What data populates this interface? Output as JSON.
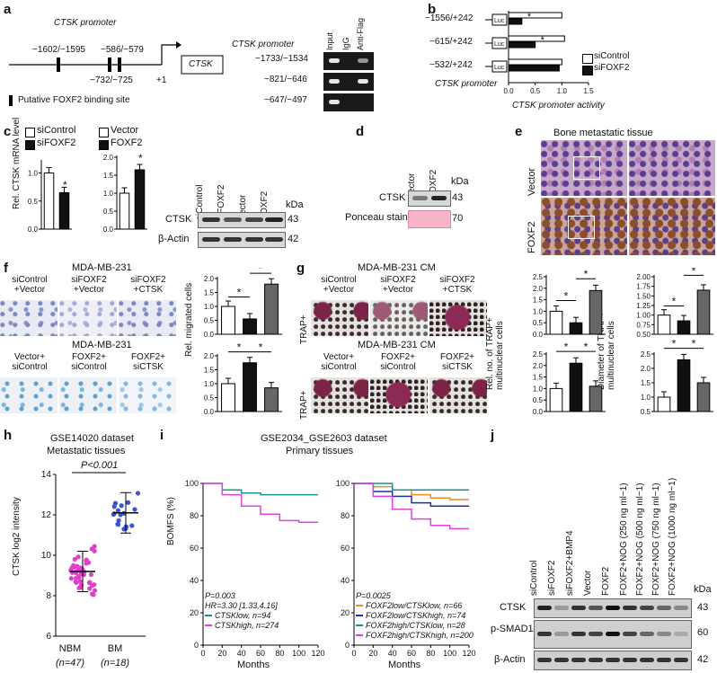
{
  "panels": {
    "a": {
      "label": "a",
      "promoter_title": "CTSK promoter",
      "gene_box": "CTSK",
      "site_labels": [
        "−1602/−1595",
        "−586/−579",
        "−732/−725"
      ],
      "plus_one": "+1",
      "legend": "Putative FOXF2 binding site",
      "gel_title": "CTSK promoter",
      "gel_cols": [
        "Input",
        "IgG",
        "Anti-Flag"
      ],
      "gel_rows": [
        "−1733/−1534",
        "−821/−646",
        "−647/−497"
      ]
    },
    "b": {
      "label": "b",
      "constructs": [
        "−1556/+242",
        "−615/+242",
        "−532/+242"
      ],
      "luc": "Luc",
      "ylabel": "CTSK promoter",
      "xlabel": "CTSK promoter activity",
      "ticks": [
        "0.0",
        "0.5",
        "1.0",
        "1.5"
      ],
      "legend": [
        "siControl",
        "siFOXF2"
      ],
      "stars": [
        "*",
        "*"
      ]
    },
    "c": {
      "label": "c",
      "legend_left": [
        "siControl",
        "siFOXF2"
      ],
      "legend_right": [
        "Vector",
        "FOXF2"
      ],
      "ylabel": "Rel. CTSK mRNA level",
      "ticks_left": [
        "0.0",
        "0.5",
        "1.0"
      ],
      "ticks_right": [
        "0.0",
        "0.5",
        "1.0",
        "1.5",
        "2.0"
      ],
      "blot_cols": [
        "siControl",
        "siFOXF2",
        "Vector",
        "FOXF2"
      ],
      "blot_rows": [
        "CTSK",
        "β-Actin"
      ],
      "kda": "kDa",
      "kda_vals": [
        "43",
        "42"
      ],
      "stars": [
        "*",
        "*"
      ]
    },
    "d": {
      "label": "d",
      "cols": [
        "Vector",
        "FOXF2"
      ],
      "rows": [
        "CTSK",
        "Ponceau stain"
      ],
      "kda": "kDa",
      "kda_vals": [
        "43",
        "70"
      ]
    },
    "e": {
      "label": "e",
      "title": "Bone metastatic tissue",
      "rows": [
        "Vector",
        "FOXF2"
      ]
    },
    "f": {
      "label": "f",
      "title_top": "MDA-MB-231",
      "title_bottom": "MDA-MB-231",
      "top_cols": [
        "siControl +Vector",
        "siFOXF2 +Vector",
        "siFOXF2 +CTSK"
      ],
      "bottom_cols": [
        "Vector+ siControl",
        "FOXF2+ siControl",
        "FOXF2+ siCTSK"
      ],
      "ylabel": "Rel. migrated cells",
      "ticks_top": [
        "0.0",
        "0.5",
        "1.0",
        "1.5",
        "2.0"
      ],
      "ticks_bottom": [
        "0.0",
        "0.5",
        "1.0",
        "1.5",
        "2.0"
      ]
    },
    "g": {
      "label": "g",
      "title_top": "MDA-MB-231 CM",
      "title_bottom": "MDA-MB-231 CM",
      "top_cols": [
        "siControl +Vector",
        "siFOXF2 +Vector",
        "siFOXF2 +CTSK"
      ],
      "bottom_cols": [
        "Vector+ siControl",
        "FOXF2+ siControl",
        "FOXF2+ siCTSK"
      ],
      "row_label": "TRAP+",
      "ylabel_no": "Rel. no. of TRAP+ multinuclear cells",
      "ylabel_dia": "Diameter of TRAP+ multinuclear cells",
      "ticks_no_top": [
        "0.0",
        "0.5",
        "1.0",
        "1.5",
        "2.0",
        "2.5"
      ],
      "ticks_no_bottom": [
        "0.0",
        "0.5",
        "1.0",
        "1.5",
        "2.0",
        "2.5"
      ],
      "ticks_dia_top": [
        "0.50",
        "0.75",
        "1.00",
        "1.25",
        "1.50",
        "1.75",
        "2.00"
      ],
      "ticks_dia_bottom": [
        "0.5",
        "1.0",
        "1.5",
        "2.0",
        "2.5"
      ]
    },
    "h": {
      "label": "h",
      "title": "GSE14020 dataset",
      "subtitle": "Metastatic tissues",
      "pvalue": "P<0.001",
      "ylabel": "CTSK log2 intensity",
      "ticks": [
        "6",
        "8",
        "10",
        "12",
        "14"
      ],
      "groups": [
        "NBM",
        "BM"
      ],
      "group_n": [
        "(n=47)",
        "(n=18)"
      ]
    },
    "i": {
      "label": "i",
      "title": "GSE2034_GSE2603 dataset",
      "subtitle": "Primary tissues",
      "ylabel": "BOMFS (%)",
      "xlabel": "Months",
      "yticks": [
        "0",
        "20",
        "40",
        "60",
        "80",
        "100"
      ],
      "xticks": [
        "0",
        "20",
        "40",
        "60",
        "80",
        "100",
        "120"
      ],
      "left_stats": [
        "P=0.003",
        "HR=3.30 [1.33,4.16]"
      ],
      "left_legend": [
        "CTSKlow, n=94",
        "CTSKhigh, n=274"
      ],
      "right_stats": [
        "P=0.0025"
      ],
      "right_legend": [
        "FOXF2low/CTSKlow, n=66",
        "FOXF2low/CTSKhigh, n=74",
        "FOXF2high/CTSKlow, n=28",
        "FOXF2high/CTSKhigh, n=200"
      ]
    },
    "j": {
      "label": "j",
      "cols": [
        "siControl",
        "siFOXF2",
        "siFOXF2+BMP4",
        "Vector",
        "FOXF2",
        "FOXF2+NOG (250 ng ml−1)",
        "FOXF2+NOG (500 ng ml−1)",
        "FOXF2+NOG (750 ng ml−1)",
        "FOXF2+NOG (1000 ng ml−1)"
      ],
      "rows": [
        "CTSK",
        "p-SMAD1/5",
        "β-Actin"
      ],
      "kda": "kDa",
      "kda_vals": [
        "43",
        "60",
        "42"
      ]
    }
  },
  "chart_data": [
    {
      "id": "b",
      "type": "bar",
      "orientation": "horizontal",
      "categories": [
        "−1556/+242",
        "−615/+242",
        "−532/+242"
      ],
      "series": [
        {
          "name": "siControl",
          "values": [
            1.0,
            1.05,
            1.0
          ]
        },
        {
          "name": "siFOXF2",
          "values": [
            0.25,
            0.5,
            0.95
          ]
        }
      ],
      "xlim": [
        0,
        1.5
      ]
    },
    {
      "id": "c-left",
      "type": "bar",
      "categories": [
        "siControl",
        "siFOXF2"
      ],
      "values": [
        1.0,
        0.65
      ],
      "ylim": [
        0,
        1.2
      ]
    },
    {
      "id": "c-right",
      "type": "bar",
      "categories": [
        "Vector",
        "FOXF2"
      ],
      "values": [
        1.0,
        1.65
      ],
      "ylim": [
        0,
        2.0
      ]
    },
    {
      "id": "f-top",
      "type": "bar",
      "categories": [
        "siControl+Vector",
        "siFOXF2+Vector",
        "siFOXF2+CTSK"
      ],
      "values": [
        1.0,
        0.55,
        1.8
      ],
      "ylim": [
        0,
        2.0
      ]
    },
    {
      "id": "f-bottom",
      "type": "bar",
      "categories": [
        "Vector+siControl",
        "FOXF2+siControl",
        "FOXF2+siCTSK"
      ],
      "values": [
        1.0,
        1.75,
        0.85
      ],
      "ylim": [
        0,
        2.0
      ]
    },
    {
      "id": "g-no-top",
      "type": "bar",
      "categories": [
        "siControl+Vector",
        "siFOXF2+Vector",
        "siFOXF2+CTSK"
      ],
      "values": [
        1.0,
        0.5,
        1.9
      ],
      "ylim": [
        0,
        2.5
      ]
    },
    {
      "id": "g-no-bottom",
      "type": "bar",
      "categories": [
        "Vector+siControl",
        "FOXF2+siControl",
        "FOXF2+siCTSK"
      ],
      "values": [
        1.0,
        2.1,
        1.1
      ],
      "ylim": [
        0,
        2.5
      ]
    },
    {
      "id": "g-dia-top",
      "type": "bar",
      "categories": [
        "siControl+Vector",
        "siFOXF2+Vector",
        "siFOXF2+CTSK"
      ],
      "values": [
        1.0,
        0.85,
        1.65
      ],
      "ylim": [
        0.5,
        2.0
      ]
    },
    {
      "id": "g-dia-bottom",
      "type": "bar",
      "categories": [
        "Vector+siControl",
        "FOXF2+siControl",
        "FOXF2+siCTSK"
      ],
      "values": [
        1.0,
        2.3,
        1.5
      ],
      "ylim": [
        0.5,
        2.5
      ]
    },
    {
      "id": "h",
      "type": "scatter",
      "categories": [
        "NBM",
        "BM"
      ],
      "means": [
        9.2,
        12.1
      ],
      "ylim": [
        6,
        14
      ]
    },
    {
      "id": "i-left",
      "type": "line",
      "xlim": [
        0,
        120
      ],
      "ylim": [
        0,
        100
      ],
      "series": [
        {
          "name": "CTSKlow, n=94",
          "x": [
            0,
            20,
            40,
            60,
            80,
            100,
            120
          ],
          "y": [
            100,
            96,
            94,
            93,
            93,
            93,
            93
          ]
        },
        {
          "name": "CTSKhigh, n=274",
          "x": [
            0,
            20,
            40,
            60,
            80,
            100,
            120
          ],
          "y": [
            100,
            93,
            86,
            81,
            77,
            76,
            76
          ]
        }
      ]
    },
    {
      "id": "i-right",
      "type": "line",
      "xlim": [
        0,
        120
      ],
      "ylim": [
        0,
        100
      ],
      "series": [
        {
          "name": "FOXF2low/CTSKlow, n=66",
          "x": [
            0,
            20,
            40,
            60,
            80,
            100,
            120
          ],
          "y": [
            100,
            98,
            96,
            93,
            91,
            90,
            90
          ]
        },
        {
          "name": "FOXF2low/CTSKhigh, n=74",
          "x": [
            0,
            20,
            40,
            60,
            80,
            100,
            120
          ],
          "y": [
            100,
            95,
            92,
            88,
            86,
            86,
            86
          ]
        },
        {
          "name": "FOXF2high/CTSKlow, n=28",
          "x": [
            0,
            20,
            40,
            60,
            80,
            100,
            120
          ],
          "y": [
            100,
            100,
            96,
            96,
            96,
            96,
            96
          ]
        },
        {
          "name": "FOXF2high/CTSKhigh, n=200",
          "x": [
            0,
            20,
            40,
            60,
            80,
            100,
            120
          ],
          "y": [
            100,
            92,
            84,
            78,
            74,
            72,
            72
          ]
        }
      ]
    }
  ]
}
